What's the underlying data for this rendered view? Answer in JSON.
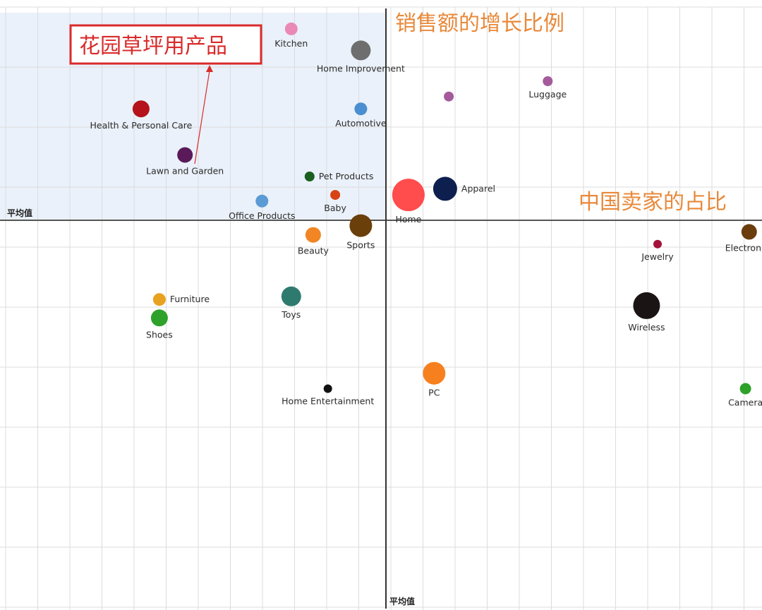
{
  "chart_data": {
    "type": "scatter",
    "title": "",
    "xlabel": "中国卖家的占比",
    "ylabel": "销售额的增长比例",
    "x_avg_label": "平均值",
    "y_avg_label": "平均值",
    "grid": true,
    "highlight_quadrant": "top-left",
    "callout": {
      "text": "花园草坪用产品",
      "target": "Lawn and Garden"
    },
    "points": [
      {
        "name": "Kitchen",
        "x": -2.6,
        "y": 3.0,
        "size": 9,
        "color": "#ea89b6"
      },
      {
        "name": "Home Improvement",
        "x": -0.7,
        "y": 2.65,
        "size": 14,
        "color": "#6e6e6e"
      },
      {
        "name": "",
        "x": 1.7,
        "y": 1.9,
        "size": 7,
        "color": "#a45a9b"
      },
      {
        "name": "Luggage",
        "x": 4.4,
        "y": 2.15,
        "size": 7,
        "color": "#a45a9b"
      },
      {
        "name": "Health & Personal Care",
        "x": -6.7,
        "y": 1.7,
        "size": 12,
        "color": "#b5121b"
      },
      {
        "name": "Automotive",
        "x": -0.7,
        "y": 1.7,
        "size": 9,
        "color": "#4a8fd1"
      },
      {
        "name": "Lawn and Garden",
        "x": -5.5,
        "y": 0.95,
        "size": 11,
        "color": "#5a1a5a"
      },
      {
        "name": "Pet Products",
        "x": -2.1,
        "y": 0.6,
        "size": 7,
        "color": "#1b5e20"
      },
      {
        "name": "Baby",
        "x": -1.4,
        "y": 0.3,
        "size": 7,
        "color": "#d84315"
      },
      {
        "name": "Office Products",
        "x": -3.4,
        "y": 0.2,
        "size": 9,
        "color": "#5b9bd5"
      },
      {
        "name": "Home",
        "x": 0.6,
        "y": 0.3,
        "size": 23,
        "color": "#ff4c4c"
      },
      {
        "name": "Apparel",
        "x": 1.6,
        "y": 0.4,
        "size": 17,
        "color": "#0d1f4f"
      },
      {
        "name": "Sports",
        "x": -0.7,
        "y": -0.2,
        "size": 16,
        "color": "#6b3f0a"
      },
      {
        "name": "Beauty",
        "x": -2.0,
        "y": -0.35,
        "size": 11,
        "color": "#f28524"
      },
      {
        "name": "Jewelry",
        "x": 7.4,
        "y": -0.5,
        "size": 6,
        "color": "#a3123a"
      },
      {
        "name": "Electronics",
        "x": 9.9,
        "y": -0.3,
        "size": 11,
        "color": "#6b3d0c"
      },
      {
        "name": "Toys",
        "x": -2.6,
        "y": -1.35,
        "size": 14,
        "color": "#2f7a6f"
      },
      {
        "name": "Furniture",
        "x": -6.2,
        "y": -1.4,
        "size": 9,
        "color": "#e8a21f"
      },
      {
        "name": "Shoes",
        "x": -6.2,
        "y": -1.7,
        "size": 12,
        "color": "#2ea12a"
      },
      {
        "name": "Wireless",
        "x": 7.1,
        "y": -1.5,
        "size": 19,
        "color": "#1a1414"
      },
      {
        "name": "PC",
        "x": 1.3,
        "y": -2.6,
        "size": 16,
        "color": "#f7801e"
      },
      {
        "name": "Home Entertainment",
        "x": -1.6,
        "y": -2.85,
        "size": 6,
        "color": "#111111"
      },
      {
        "name": "Camera",
        "x": 9.8,
        "y": -2.85,
        "size": 8,
        "color": "#2ea12a"
      }
    ],
    "xlim": [
      -10.55,
      10.25
    ],
    "ylim": [
      -6.45,
      3.47
    ]
  }
}
